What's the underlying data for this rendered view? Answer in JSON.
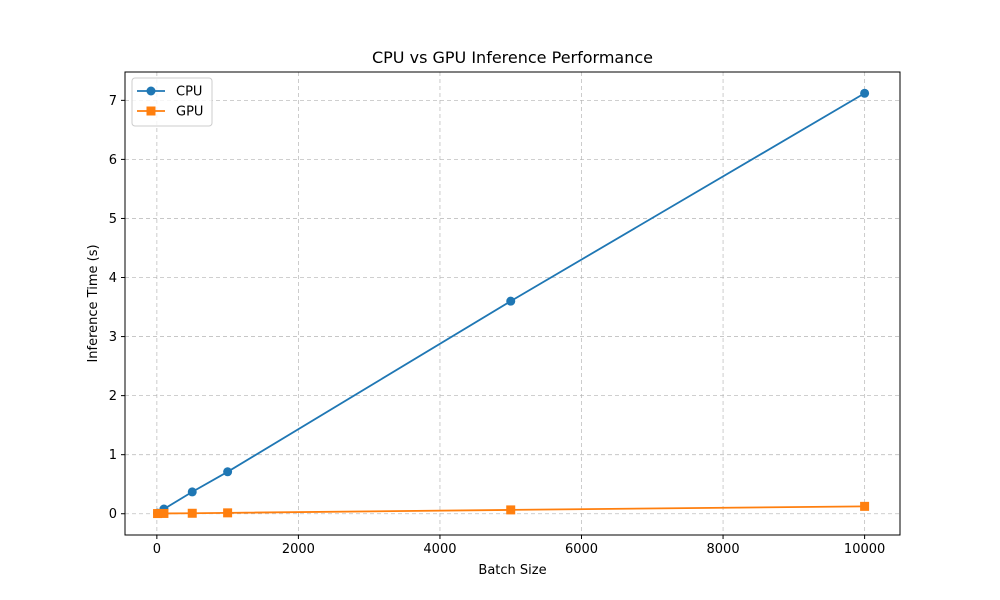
{
  "chart_data": {
    "type": "line",
    "title": "CPU vs GPU Inference Performance",
    "xlabel": "Batch Size",
    "ylabel": "Inference Time (s)",
    "xlim": [
      -450,
      10500
    ],
    "ylim": [
      -0.36,
      7.48
    ],
    "xticks": [
      0,
      2000,
      4000,
      6000,
      8000,
      10000
    ],
    "yticks": [
      0,
      1,
      2,
      3,
      4,
      5,
      6,
      7
    ],
    "grid": true,
    "legend_position": "upper-left",
    "series": [
      {
        "name": "CPU",
        "color": "#1f77b4",
        "marker": "circle",
        "x": [
          10,
          100,
          500,
          1000,
          5000,
          10000
        ],
        "y": [
          0.01,
          0.08,
          0.37,
          0.71,
          3.6,
          7.12
        ]
      },
      {
        "name": "GPU",
        "color": "#ff7f0e",
        "marker": "square",
        "x": [
          10,
          100,
          500,
          1000,
          5000,
          10000
        ],
        "y": [
          0.003,
          0.005,
          0.008,
          0.015,
          0.065,
          0.125
        ]
      }
    ]
  }
}
